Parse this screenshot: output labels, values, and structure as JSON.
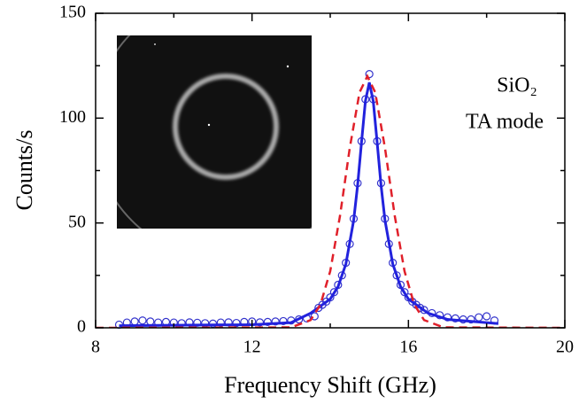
{
  "chart_data": {
    "type": "scatter",
    "x_label": "Frequency Shift (GHz)",
    "y_label": "Counts/s",
    "annotations": [
      "SiO₂",
      "TA mode"
    ],
    "xlim": [
      8,
      20
    ],
    "ylim": [
      0,
      150
    ],
    "xticks": [
      8,
      12,
      16,
      20
    ],
    "yticks": [
      0,
      50,
      100,
      150
    ],
    "x_minor_ticks": [
      10,
      14,
      18
    ],
    "y_minor_ticks": [
      25,
      75,
      125
    ],
    "series": [
      {
        "style": "markers",
        "color": "#3333cc",
        "x": [
          8.6,
          8.8,
          9.0,
          9.2,
          9.4,
          9.6,
          9.8,
          10.0,
          10.2,
          10.4,
          10.6,
          10.8,
          11.0,
          11.2,
          11.4,
          11.6,
          11.8,
          12.0,
          12.2,
          12.4,
          12.6,
          12.8,
          13.0,
          13.2,
          13.4,
          13.6,
          13.7,
          13.8,
          13.9,
          14.0,
          14.1,
          14.2,
          14.3,
          14.4,
          14.5,
          14.6,
          14.7,
          14.8,
          14.9,
          15.0,
          15.1,
          15.2,
          15.3,
          15.4,
          15.5,
          15.6,
          15.7,
          15.8,
          15.9,
          16.0,
          16.1,
          16.2,
          16.3,
          16.4,
          16.6,
          16.8,
          17.0,
          17.2,
          17.4,
          17.6,
          17.8,
          18.0,
          18.2
        ],
        "values": [
          1.5,
          2.5,
          3,
          3.5,
          3,
          2.5,
          2.8,
          2.5,
          2.2,
          2.6,
          2.4,
          2.2,
          2.0,
          2.5,
          2.6,
          2.3,
          2.8,
          3.0,
          2.6,
          2.8,
          3.0,
          3.2,
          3.5,
          4.0,
          4.5,
          5.5,
          9.5,
          11,
          12.5,
          14.5,
          17,
          20.5,
          25,
          31,
          40,
          52,
          69,
          89,
          109,
          121,
          109,
          89,
          69,
          52,
          40,
          31,
          25,
          20.5,
          17,
          14.5,
          12.5,
          11,
          9.5,
          8.5,
          7,
          6,
          5,
          4.5,
          4,
          4,
          5,
          5.5,
          3.5
        ]
      },
      {
        "style": "line",
        "color": "#2222dd",
        "x": [
          8.6,
          12,
          13,
          13.5,
          14,
          14.2,
          14.4,
          14.6,
          14.7,
          14.8,
          14.9,
          15,
          15.1,
          15.2,
          15.3,
          15.4,
          15.6,
          15.8,
          16,
          16.5,
          17,
          18.3
        ],
        "values": [
          1,
          1.5,
          2.5,
          7,
          13.7,
          19.6,
          30.4,
          51.3,
          67.9,
          88.4,
          108.2,
          117,
          108.2,
          88.4,
          67.9,
          51.3,
          30.4,
          19.6,
          13.7,
          7,
          4,
          2
        ]
      },
      {
        "style": "dashed",
        "color": "#e0202a",
        "x": [
          8,
          13,
          13.5,
          13.75,
          14,
          14.25,
          14.5,
          14.75,
          14.95,
          15.15,
          15.4,
          15.65,
          15.9,
          16.15,
          16.4,
          16.9,
          20
        ],
        "values": [
          0,
          0.2,
          3.7,
          11.1,
          27,
          53.4,
          85.8,
          112.3,
          120,
          112.3,
          85.8,
          53.4,
          27,
          11.1,
          3.7,
          0.2,
          0
        ]
      }
    ]
  }
}
